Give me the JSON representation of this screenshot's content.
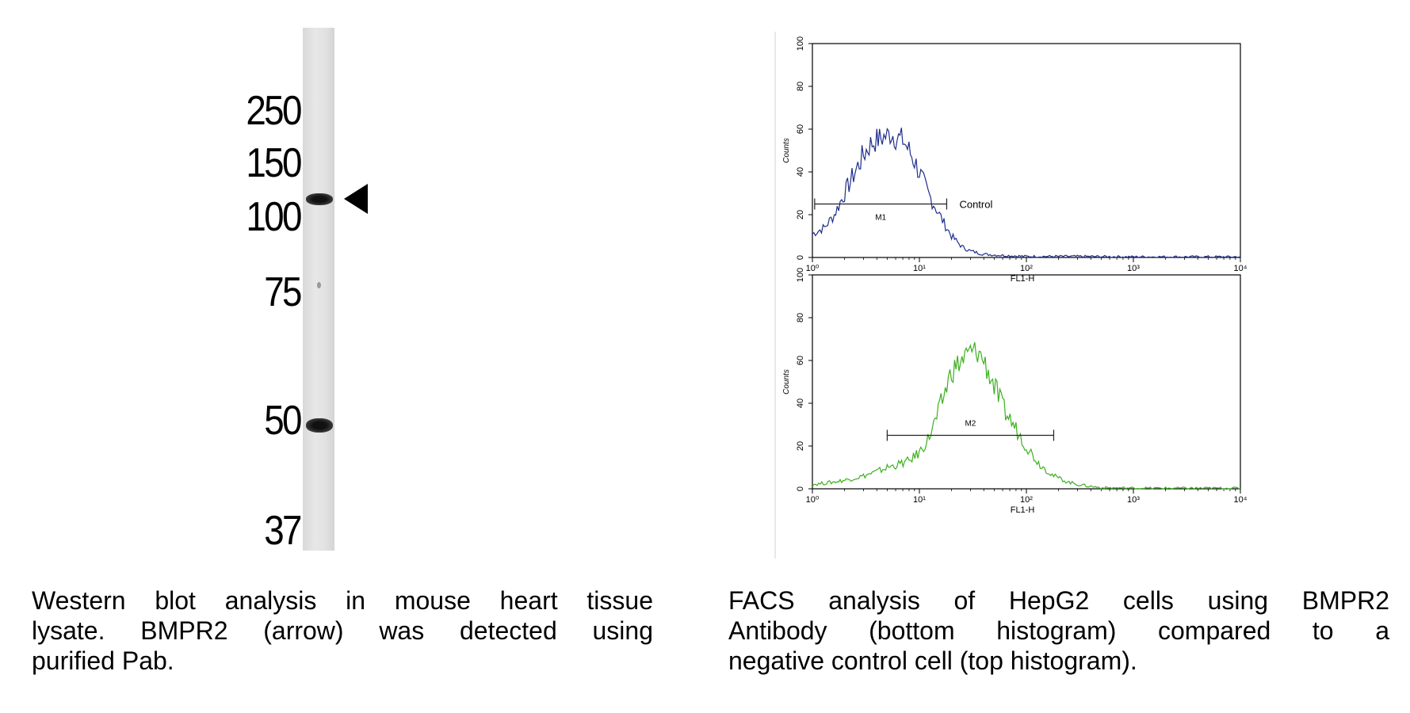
{
  "western_blot": {
    "mw_markers": [
      "250",
      "150",
      "100",
      "75",
      "50",
      "37"
    ],
    "caption_lines": [
      "Western blot analysis in mouse heart tissue",
      "lysate. BMPR2 (arrow) was detected using",
      "purified Pab."
    ]
  },
  "facs": {
    "caption_lines": [
      "FACS analysis of HepG2 cells using BMPR2",
      "Antibody (bottom histogram) compared to a",
      "negative control cell (top histogram)."
    ],
    "colors": {
      "control": "#1f2e8c",
      "antibody": "#3cb01e",
      "axis": "#000000"
    }
  },
  "chart_data": [
    {
      "type": "area",
      "title": "",
      "xlabel": "FL1-H",
      "ylabel": "Counts",
      "xscale": "log",
      "xlim": [
        1,
        10000
      ],
      "ylim": [
        0,
        100
      ],
      "x_ticks": [
        "10⁰",
        "10¹",
        "10²",
        "10³",
        "10⁴"
      ],
      "y_ticks": [
        "0",
        "20",
        "40",
        "60",
        "80",
        "100"
      ],
      "gate": {
        "label": "M1",
        "range": [
          1.05,
          18
        ]
      },
      "annotation": "Control",
      "series": [
        {
          "x": [
            1,
            1.3,
            1.6,
            2,
            2.5,
            3,
            3.5,
            4,
            4.5,
            5,
            5.5,
            6,
            7,
            8,
            9,
            10,
            12,
            14,
            17,
            20,
            25,
            30,
            40,
            60,
            100,
            300,
            1000,
            10000
          ],
          "values": [
            11,
            14,
            20,
            30,
            40,
            48,
            53,
            55,
            56,
            57,
            58,
            56,
            55,
            50,
            45,
            40,
            30,
            24,
            16,
            10,
            5,
            3,
            1.5,
            1,
            0.5,
            0.5,
            0.3,
            0.3
          ]
        }
      ]
    },
    {
      "type": "area",
      "title": "",
      "xlabel": "FL1-H",
      "ylabel": "Counts",
      "xscale": "log",
      "xlim": [
        1,
        10000
      ],
      "ylim": [
        0,
        100
      ],
      "x_ticks": [
        "10⁰",
        "10¹",
        "10²",
        "10³",
        "10⁴"
      ],
      "y_ticks": [
        "0",
        "20",
        "40",
        "60",
        "80",
        "100"
      ],
      "gate": {
        "label": "M2",
        "range": [
          5,
          180
        ]
      },
      "annotation": "",
      "series": [
        {
          "x": [
            1,
            1.5,
            2,
            3,
            4,
            5,
            6,
            8,
            10,
            12,
            15,
            18,
            20,
            25,
            30,
            35,
            40,
            50,
            60,
            80,
            100,
            130,
            180,
            250,
            350,
            500,
            1000,
            10000
          ],
          "values": [
            2,
            3,
            4,
            6,
            8,
            10,
            11,
            13,
            17,
            23,
            35,
            48,
            55,
            60,
            64,
            64,
            60,
            48,
            38,
            28,
            20,
            12,
            6,
            3,
            1.5,
            0.5,
            0.3,
            0.3
          ]
        }
      ]
    }
  ]
}
